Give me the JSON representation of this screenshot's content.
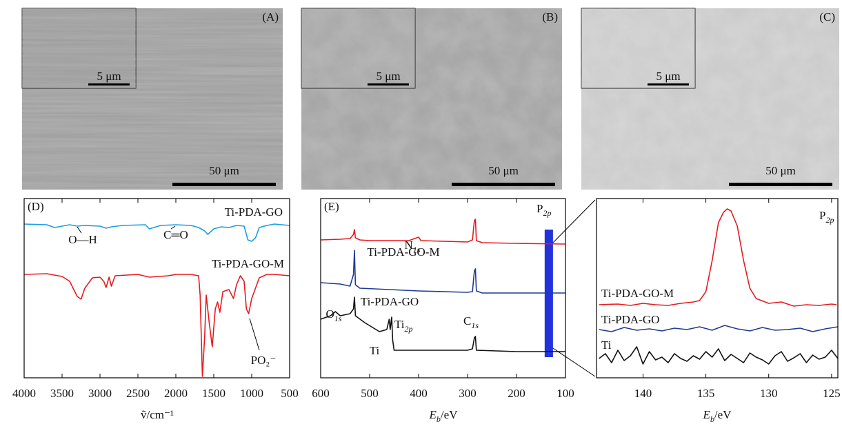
{
  "images": [
    {
      "label": "(A)",
      "scale": "50 μm",
      "inset_scale": "5 μm"
    },
    {
      "label": "(B)",
      "scale": "50 μm",
      "inset_scale": "5 μm"
    },
    {
      "label": "(C)",
      "scale": "50 μm",
      "inset_scale": "5 μm"
    }
  ],
  "chart_data": [
    {
      "type": "line",
      "label": "(D)",
      "x_label": {
        "text": "ṽ/cm⁻¹"
      },
      "xlim": [
        4000,
        500
      ],
      "xticks": [
        4000,
        3500,
        3000,
        2500,
        2000,
        1500,
        1000,
        500
      ],
      "ylim": [
        0,
        260
      ],
      "annotations": [
        {
          "text": "Ti-PDA-GO"
        },
        {
          "text": "O—H"
        },
        {
          "text": "C═O"
        },
        {
          "text": "Ti-PDA-GO-M"
        },
        {
          "text": "PO₂⁻"
        }
      ],
      "series": [
        {
          "color": "#1a9ee0",
          "x": [
            4000,
            3700,
            3600,
            3400,
            3300,
            3200,
            3000,
            2920,
            2850,
            2700,
            2400,
            2350,
            2200,
            2000,
            1800,
            1700,
            1620,
            1580,
            1500,
            1400,
            1300,
            1200,
            1100,
            1050,
            1000,
            950,
            900,
            800,
            700,
            600,
            500
          ],
          "values": [
            223,
            222,
            218,
            222,
            220,
            221,
            220,
            217,
            219,
            221,
            222,
            216,
            221,
            222,
            221,
            218,
            213,
            208,
            216,
            219,
            218,
            221,
            220,
            200,
            198,
            203,
            218,
            221,
            223,
            222,
            221
          ]
        },
        {
          "color": "#e8191e",
          "x": [
            4000,
            3700,
            3500,
            3400,
            3300,
            3250,
            3200,
            3100,
            3000,
            2950,
            2920,
            2880,
            2850,
            2800,
            2500,
            2350,
            2100,
            2000,
            1800,
            1700,
            1680,
            1650,
            1620,
            1600,
            1560,
            1520,
            1480,
            1450,
            1420,
            1380,
            1300,
            1240,
            1200,
            1150,
            1100,
            1070,
            1040,
            1000,
            950,
            900,
            800,
            700,
            500
          ],
          "values": [
            150,
            151,
            147,
            140,
            118,
            114,
            130,
            145,
            146,
            140,
            131,
            146,
            133,
            148,
            150,
            146,
            148,
            150,
            150,
            148,
            120,
            2,
            60,
            120,
            80,
            45,
            100,
            110,
            95,
            125,
            128,
            115,
            135,
            148,
            140,
            100,
            93,
            115,
            130,
            145,
            150,
            150,
            148
          ]
        }
      ]
    },
    {
      "type": "line",
      "label": "(E)",
      "x_label": {
        "base": "E",
        "sub": "b",
        "rest": "/eV"
      },
      "xlim": [
        600,
        100
      ],
      "xticks": [
        600,
        500,
        400,
        300,
        200,
        100
      ],
      "ylim": [
        0,
        260
      ],
      "highlight": [
        142.5,
        125.5
      ],
      "annotations": [
        {
          "base": "N",
          "sub": "1s"
        },
        {
          "text": "Ti-PDA-GO-M"
        },
        {
          "text": "Ti-PDA-GO"
        },
        {
          "base": "O",
          "sub": "1s"
        },
        {
          "base": "Ti",
          "sub": "2p"
        },
        {
          "text": "Ti"
        },
        {
          "base": "C",
          "sub": "1s"
        },
        {
          "base": "P",
          "sub": "2p"
        }
      ],
      "series": [
        {
          "color": "#e8191e",
          "x": [
            600,
            560,
            540,
            533,
            531,
            529,
            520,
            500,
            420,
            400,
            395,
            300,
            290,
            286,
            284,
            282,
            270,
            200,
            100
          ],
          "values": [
            200,
            201,
            202,
            208,
            215,
            203,
            200,
            199,
            199,
            204,
            199,
            197,
            200,
            228,
            230,
            199,
            196,
            195,
            194
          ]
        },
        {
          "color": "#1f3a93",
          "x": [
            600,
            560,
            540,
            533,
            531,
            529,
            520,
            400,
            300,
            290,
            286,
            284,
            282,
            270,
            100
          ],
          "values": [
            138,
            136,
            133,
            150,
            185,
            135,
            130,
            126,
            124,
            125,
            155,
            158,
            126,
            123,
            123
          ]
        },
        {
          "color": "#111111",
          "x": [
            600,
            580,
            570,
            560,
            540,
            533,
            531,
            529,
            510,
            480,
            465,
            460,
            458,
            455,
            453,
            450,
            400,
            300,
            290,
            286,
            284,
            282,
            200,
            100
          ],
          "values": [
            85,
            90,
            96,
            90,
            93,
            100,
            117,
            90,
            80,
            67,
            70,
            85,
            70,
            88,
            55,
            40,
            40,
            40,
            42,
            58,
            60,
            40,
            38,
            38
          ]
        }
      ]
    },
    {
      "type": "line",
      "x_label": {
        "base": "E",
        "sub": "b",
        "rest": "/eV"
      },
      "xlim": [
        143.7,
        124.5
      ],
      "xticks": [
        140,
        135,
        130,
        125
      ],
      "ylim": [
        0,
        260
      ],
      "annotations": [
        {
          "text": "Ti-PDA-GO-M"
        },
        {
          "text": "Ti-PDA-GO"
        },
        {
          "text": "Ti"
        },
        {
          "base": "P",
          "sub": "2p"
        }
      ],
      "series": [
        {
          "color": "#e8191e",
          "x": [
            143.5,
            142,
            141,
            140,
            139,
            138,
            137,
            136,
            135.5,
            135,
            134.5,
            134,
            133.6,
            133.3,
            133,
            132.5,
            132,
            131.5,
            131,
            130,
            129,
            128,
            127,
            126,
            125,
            124.6
          ],
          "values": [
            106,
            107,
            105,
            108,
            106,
            105,
            108,
            110,
            112,
            125,
            170,
            225,
            240,
            245,
            242,
            220,
            170,
            130,
            115,
            108,
            110,
            104,
            106,
            105,
            107,
            106
          ]
        },
        {
          "color": "#1f3a93",
          "x": [
            143.5,
            142.5,
            141.5,
            140.5,
            139.5,
            138.5,
            137.5,
            136.5,
            135.5,
            134.5,
            133.5,
            132.5,
            131.5,
            130.5,
            129.5,
            128.5,
            127.5,
            126.5,
            125.5,
            124.5
          ],
          "values": [
            70,
            67,
            73,
            69,
            71,
            68,
            72,
            70,
            74,
            69,
            76,
            71,
            68,
            73,
            69,
            70,
            72,
            67,
            71,
            74
          ]
        },
        {
          "color": "#111111",
          "x": [
            143.5,
            143,
            142.5,
            142,
            141.5,
            141,
            140.5,
            140,
            139.5,
            139,
            138.5,
            138,
            137.5,
            137,
            136.5,
            136,
            135.5,
            135,
            134.5,
            134,
            133.5,
            133,
            132.5,
            132,
            131.5,
            131,
            130.5,
            130,
            129.5,
            129,
            128.5,
            128,
            127.5,
            127,
            126.5,
            126,
            125.5,
            125,
            124.5
          ],
          "values": [
            28,
            35,
            22,
            40,
            25,
            32,
            45,
            20,
            38,
            26,
            30,
            22,
            35,
            28,
            24,
            32,
            27,
            38,
            30,
            42,
            25,
            34,
            28,
            22,
            36,
            30,
            26,
            20,
            32,
            38,
            24,
            29,
            35,
            22,
            33,
            27,
            30,
            40,
            28
          ]
        }
      ]
    }
  ]
}
